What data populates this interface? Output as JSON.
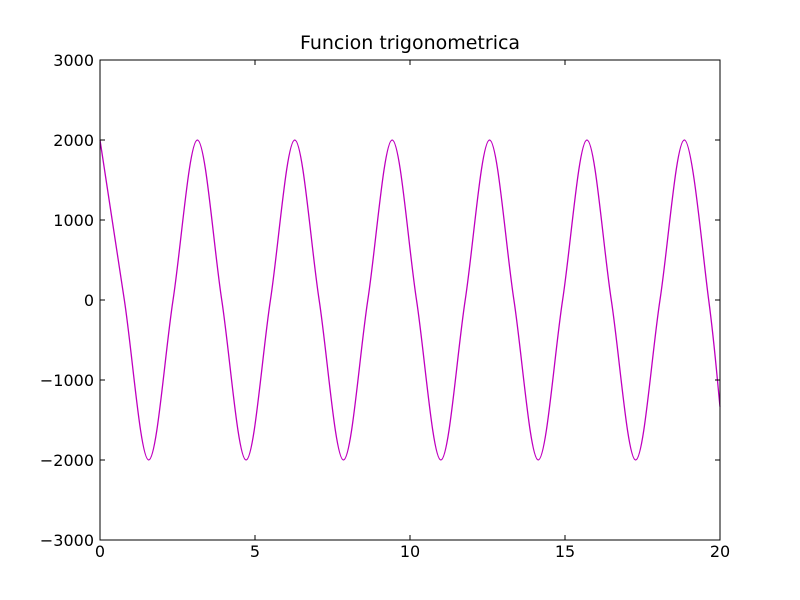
{
  "chart_data": {
    "type": "line",
    "title": "Funcion trigonometrica",
    "xlabel": "",
    "ylabel": "",
    "xlim": [
      0,
      20
    ],
    "ylim": [
      -3000,
      3000
    ],
    "x_ticks": [
      "0",
      "5",
      "10",
      "15",
      "20"
    ],
    "y_ticks": [
      "3000",
      "2000",
      "1000",
      "0",
      "−1000",
      "−2000",
      "−3000"
    ],
    "grid": false,
    "legend": "none",
    "series": [
      {
        "color": "#bf00bf",
        "formula": "y = 2000*cos(2x)",
        "x": [
          0,
          0.785,
          1.571,
          2.356,
          3.142,
          3.927,
          4.712,
          5.498,
          6.283,
          7.069,
          7.854,
          8.639,
          9.425,
          10.21,
          10.996,
          11.781,
          12.566,
          13.352,
          14.137,
          14.923,
          15.708,
          16.493,
          17.279,
          18.064,
          18.85,
          19.635,
          20
        ],
        "y": [
          2000,
          0,
          -2000,
          0,
          2000,
          0,
          -2000,
          0,
          2000,
          0,
          -2000,
          0,
          2000,
          0,
          -2000,
          0,
          2000,
          0,
          -2000,
          0,
          2000,
          0,
          -2000,
          0,
          2000,
          0,
          -1334
        ]
      }
    ]
  }
}
